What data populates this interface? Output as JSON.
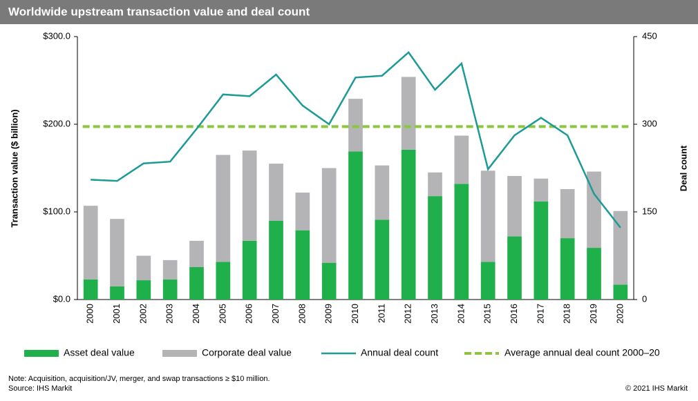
{
  "chart_data": {
    "type": "bar",
    "stacked": true,
    "title": "Worldwide upstream transaction value and deal count",
    "ylabel": "Transaction value ($ billion)",
    "y2label": "Deal count",
    "categories": [
      "2000",
      "2001",
      "2002",
      "2003",
      "2004",
      "2005",
      "2006",
      "2007",
      "2008",
      "2009",
      "2010",
      "2011",
      "2012",
      "2013",
      "2014",
      "2015",
      "2016",
      "2017",
      "2018",
      "2019",
      "2020"
    ],
    "series": [
      {
        "name": "Asset deal value",
        "color": "#1fb04b",
        "type": "bar",
        "values": [
          23,
          15,
          22,
          23,
          37,
          43,
          67,
          90,
          79,
          42,
          169,
          91,
          171,
          118,
          132,
          43,
          72,
          112,
          70,
          59,
          17
        ]
      },
      {
        "name": "Corporate deal value",
        "color": "#b4b4b7",
        "type": "bar",
        "values": [
          84,
          77,
          28,
          22,
          30,
          122,
          103,
          65,
          43,
          108,
          60,
          62,
          83,
          27,
          55,
          104,
          69,
          26,
          56,
          87,
          84
        ]
      },
      {
        "name": "Annual deal count",
        "color": "#1b9a96",
        "type": "line",
        "axis": "y2",
        "values": [
          205,
          203,
          233,
          236,
          292,
          351,
          348,
          385,
          332,
          300,
          380,
          383,
          423,
          359,
          404,
          223,
          281,
          311,
          281,
          181,
          123
        ]
      }
    ],
    "average_line": {
      "name": "Average annual deal count 2000–20",
      "value": 296,
      "color": "#8cc63f",
      "axis": "y2"
    },
    "ylim": [
      0,
      300
    ],
    "yticks": [
      {
        "value": 0,
        "label": "$0.0"
      },
      {
        "value": 100,
        "label": "$100.0"
      },
      {
        "value": 200,
        "label": "$200.0"
      },
      {
        "value": 300,
        "label": "$300.0"
      }
    ],
    "y2lim": [
      0,
      450
    ],
    "y2ticks": [
      0,
      150,
      300,
      450
    ],
    "legend": "bottom",
    "note": "Note: Acquisition, acquisition/JV, merger, and swap transactions ≥ $10 million.",
    "source": "Source: IHS Markit",
    "copyright": "© 2021 IHS Markit"
  }
}
